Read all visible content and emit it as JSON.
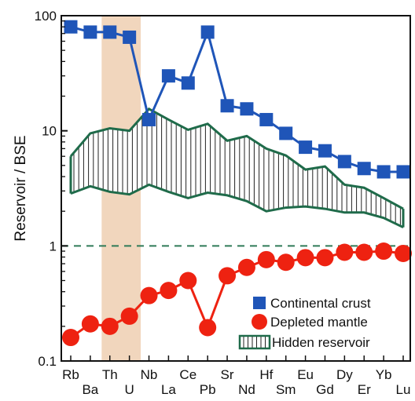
{
  "chart_data": {
    "type": "line",
    "ylabel": "Reservoir / BSE",
    "xlabel": "",
    "y_scale": "log",
    "ylim": [
      0.1,
      100
    ],
    "y_ticks": [
      "0.1",
      "1",
      "10",
      "100"
    ],
    "reference_line": {
      "y": 1,
      "style": "dashed"
    },
    "highlight_band": {
      "from": "Th",
      "to": "U"
    },
    "categories": [
      "Rb",
      "Ba",
      "Th",
      "U",
      "Nb",
      "La",
      "Ce",
      "Pb",
      "Sr",
      "Nd",
      "Hf",
      "Sm",
      "Eu",
      "Gd",
      "Dy",
      "Er",
      "Yb",
      "Lu"
    ],
    "series": [
      {
        "name": "Continental crust",
        "marker": "square",
        "values": [
          80,
          72,
          72,
          65,
          12.5,
          30,
          26,
          72,
          16.5,
          15.5,
          12.5,
          9.5,
          7.2,
          6.7,
          5.4,
          4.7,
          4.4,
          4.4
        ]
      },
      {
        "name": "Depleted mantle",
        "marker": "circle",
        "values": [
          0.16,
          0.21,
          0.2,
          0.245,
          0.37,
          0.41,
          0.5,
          0.195,
          0.55,
          0.65,
          0.76,
          0.72,
          0.79,
          0.79,
          0.88,
          0.88,
          0.9,
          0.86
        ]
      },
      {
        "name": "Hidden reservoir",
        "type": "band",
        "upper": [
          6.0,
          9.5,
          10.5,
          10,
          15.5,
          12.5,
          10.2,
          11.5,
          8.2,
          9.0,
          7.0,
          6.1,
          4.6,
          4.9,
          3.4,
          3.2,
          2.6,
          2.1
        ],
        "lower": [
          2.85,
          3.3,
          2.95,
          2.8,
          3.4,
          2.95,
          2.6,
          2.9,
          2.75,
          2.45,
          2.0,
          2.15,
          2.2,
          2.1,
          1.95,
          1.95,
          1.75,
          1.45
        ]
      }
    ],
    "colors": {
      "crust": "#1f55b8",
      "mantle": "#ee2211",
      "hidden": "#1f6b4a",
      "band": "#f1d6bd",
      "refline": "#2f7a57"
    },
    "legend_position": "bottom-right"
  }
}
